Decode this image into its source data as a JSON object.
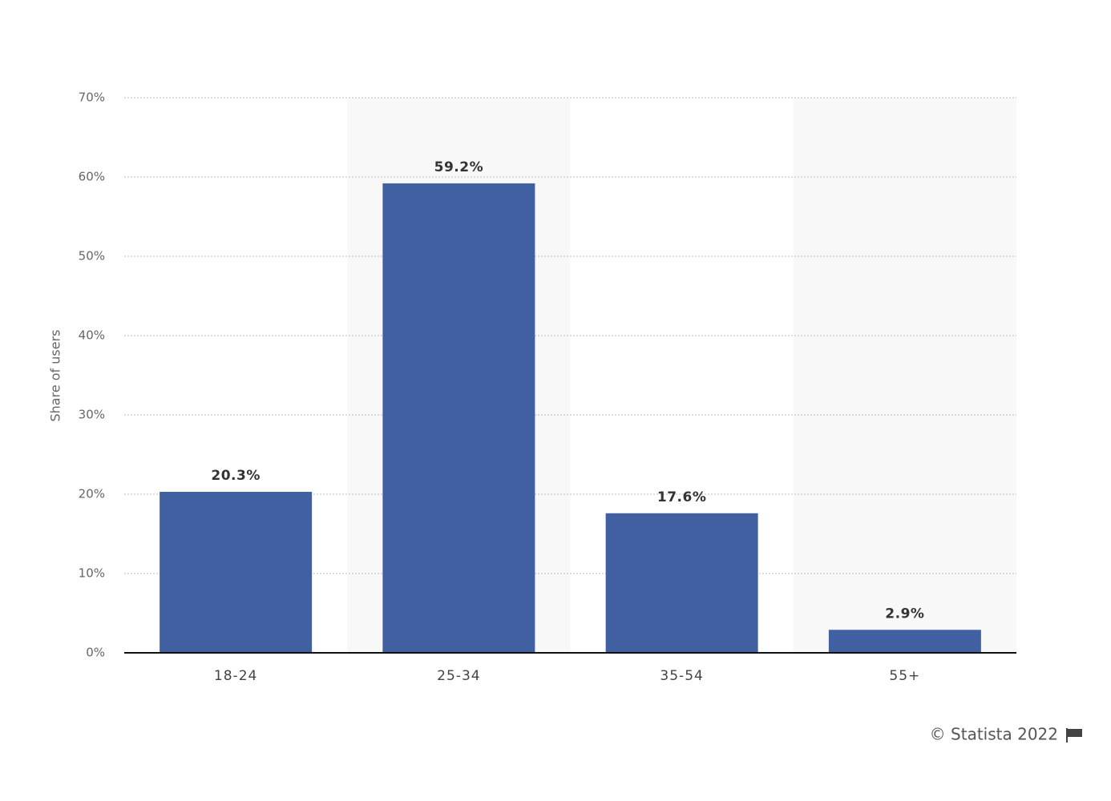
{
  "chart_data": {
    "type": "bar",
    "y_label": "Share of users",
    "categories": [
      "18-24",
      "25-34",
      "35-54",
      "55+"
    ],
    "values": [
      20.3,
      59.2,
      17.6,
      2.9
    ],
    "value_labels": [
      "20.3%",
      "59.2%",
      "17.6%",
      "2.9%"
    ],
    "color": "#4160a2",
    "ylim": [
      0,
      70
    ],
    "yticks": [
      {
        "value": 0,
        "label": "0%"
      },
      {
        "value": 10,
        "label": "10%"
      },
      {
        "value": 20,
        "label": "20%"
      },
      {
        "value": 30,
        "label": "30%"
      },
      {
        "value": 40,
        "label": "40%"
      },
      {
        "value": 50,
        "label": "50%"
      },
      {
        "value": 60,
        "label": "60%"
      },
      {
        "value": 70,
        "label": "70%"
      }
    ],
    "grid": true,
    "credit": "© Statista 2022"
  }
}
